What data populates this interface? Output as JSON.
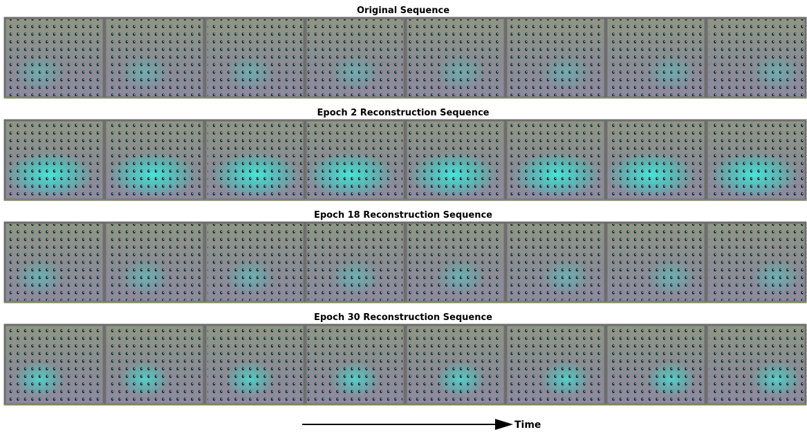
{
  "rows": [
    {
      "title": "Original Sequence"
    },
    {
      "title": "Epoch 2 Reconstruction Sequence"
    },
    {
      "title": "Epoch 18 Reconstruction Sequence"
    },
    {
      "title": "Epoch 30 Reconstruction Sequence"
    }
  ],
  "axis_label": "Time"
}
